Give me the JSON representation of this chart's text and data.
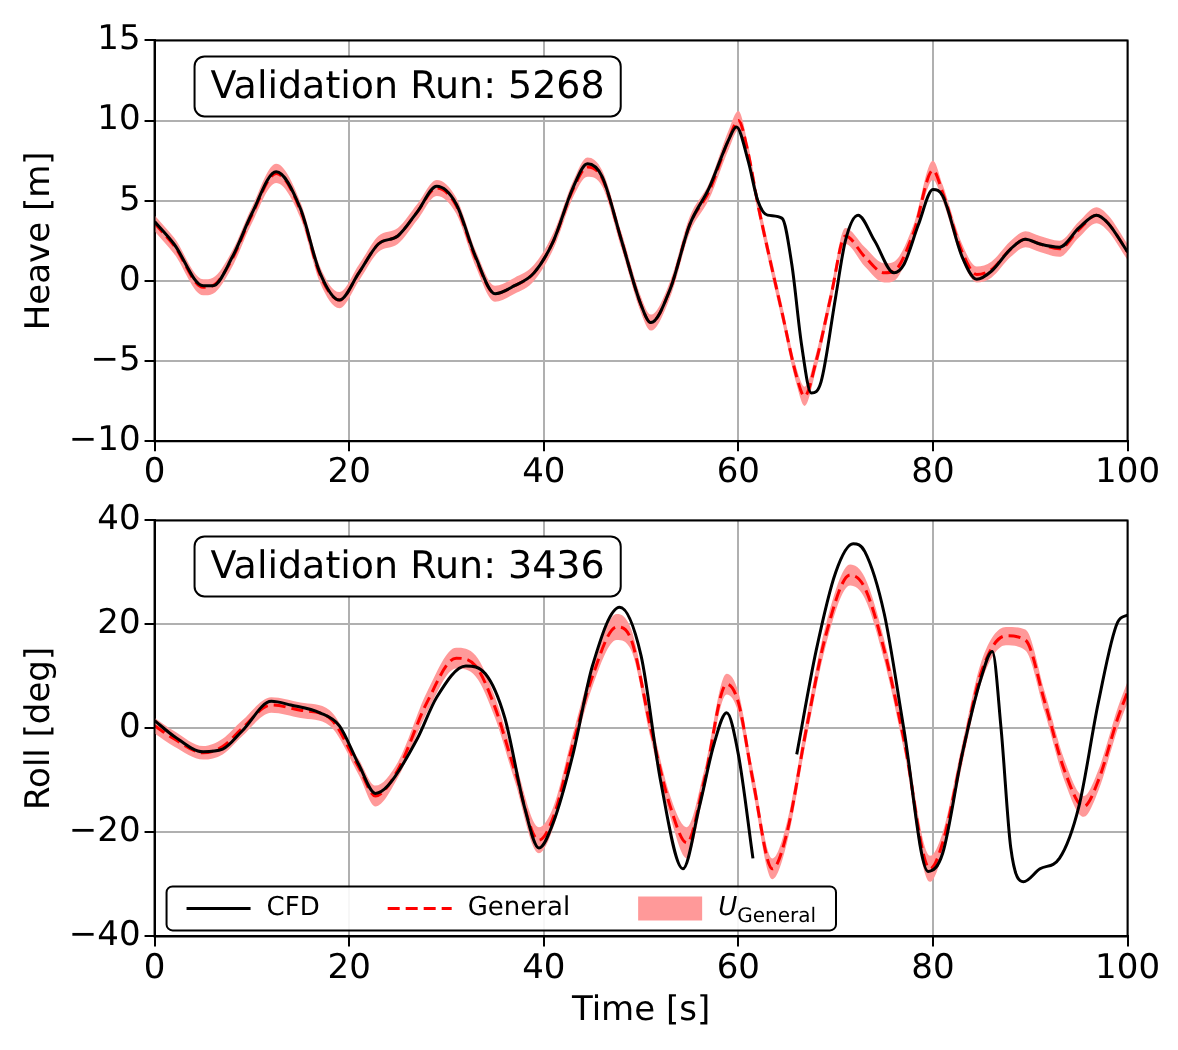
{
  "chart_data": [
    {
      "type": "line",
      "ylabel": "Heave [m]",
      "annotations": [
        "Validation Run: 5268"
      ],
      "xlim": [
        0,
        100
      ],
      "xticks": [
        0,
        20,
        40,
        60,
        80,
        100
      ],
      "ylim": [
        -10,
        15
      ],
      "yticks": [
        {
          "value": -10,
          "label": "−10"
        },
        {
          "value": -5,
          "label": "−5"
        },
        0,
        5,
        10,
        15
      ],
      "grid": true,
      "legend": false,
      "series": [
        {
          "color": "#000000",
          "line_style": "solid",
          "x": [
            0,
            2,
            5,
            6,
            8,
            10,
            12.5,
            15,
            17,
            19,
            21,
            23,
            25,
            27,
            29,
            31,
            33,
            35,
            37,
            39,
            41,
            43,
            44.5,
            46,
            48,
            50,
            51,
            53,
            55,
            57,
            59,
            59.8,
            61,
            62,
            63,
            64.5,
            65.5,
            66.5,
            67.5,
            68.5,
            70,
            71,
            72.3,
            74,
            76,
            77,
            78.5,
            80,
            81,
            83,
            84.5,
            86,
            88,
            89.5,
            91,
            93,
            95,
            96.8,
            98,
            100
          ],
          "values": [
            3.7,
            2.3,
            -0.3,
            -0.3,
            1.5,
            4.2,
            6.8,
            4.5,
            0.5,
            -1.2,
            0.5,
            2.3,
            2.8,
            4.3,
            5.9,
            4.8,
            1.5,
            -0.8,
            -0.3,
            0.5,
            2.5,
            5.8,
            7.3,
            6.5,
            2.5,
            -1.5,
            -2.6,
            -0.5,
            3.5,
            5.8,
            8.8,
            9.6,
            7.5,
            5,
            4.1,
            3.9,
            1,
            -4,
            -7,
            -6.3,
            -1,
            2.5,
            4.1,
            2.5,
            0.5,
            1,
            3.5,
            5.7,
            5.3,
            1.5,
            0.1,
            0.6,
            2,
            2.6,
            2.3,
            2.1,
            3.3,
            4.1,
            3.6,
            1.8
          ]
        },
        {
          "color": "#ff0000",
          "line_style": "dashed",
          "x": [
            0,
            2,
            5,
            6,
            8,
            10,
            12.5,
            15,
            17,
            19,
            21,
            23,
            25,
            27,
            29,
            31,
            33,
            35,
            37,
            39,
            41,
            43,
            44.5,
            46,
            48,
            50,
            51,
            53,
            55,
            57,
            59,
            60,
            61,
            62,
            63,
            64.5,
            66,
            66.8,
            68,
            69.5,
            71,
            73,
            75,
            76,
            78,
            80,
            81,
            83,
            84.5,
            86,
            88,
            89.5,
            91,
            93,
            95,
            96.8,
            98,
            100
          ],
          "values": [
            3.6,
            2.2,
            -0.4,
            -0.3,
            1.4,
            4.1,
            6.7,
            4.4,
            0.4,
            -1.2,
            0.5,
            2.3,
            2.8,
            4.3,
            5.8,
            4.7,
            1.4,
            -0.8,
            -0.3,
            0.5,
            2.5,
            5.7,
            7.1,
            6.4,
            2.5,
            -1.5,
            -2.6,
            -0.5,
            3.5,
            5.6,
            8.8,
            10,
            8,
            4.8,
            2,
            -2,
            -6,
            -7.2,
            -5,
            -1,
            2.8,
            1.5,
            0.5,
            0.6,
            3,
            6.9,
            5.5,
            1.8,
            0.4,
            0.7,
            2,
            2.6,
            2.3,
            2,
            3.2,
            4.1,
            3.6,
            1.8
          ]
        },
        {
          "color": "#ff9999",
          "x": [
            0,
            2,
            5,
            6,
            8,
            10,
            12.5,
            15,
            17,
            19,
            21,
            23,
            25,
            27,
            29,
            31,
            33,
            35,
            37,
            39,
            41,
            43,
            44.5,
            46,
            48,
            50,
            51,
            53,
            55,
            57,
            59,
            60,
            61,
            62,
            63,
            64.5,
            66,
            66.8,
            68,
            69.5,
            71,
            73,
            75,
            76,
            78,
            80,
            81,
            83,
            84.5,
            86,
            88,
            89.5,
            91,
            93,
            95,
            96.8,
            98,
            100
          ],
          "values": [
            null,
            null,
            null,
            null,
            null,
            null,
            null,
            null,
            null,
            null,
            null,
            null,
            null,
            null,
            null,
            null,
            null,
            null,
            null,
            null,
            null,
            null,
            null,
            null,
            null,
            null,
            null,
            null,
            null,
            null,
            null,
            null,
            null,
            null,
            null,
            null,
            null,
            null,
            null,
            null,
            null,
            null,
            null,
            null,
            null,
            null,
            null,
            null,
            null,
            null,
            null,
            null,
            null,
            null,
            null,
            null,
            null,
            null
          ],
          "lower": [
            3.1,
            1.7,
            -0.9,
            -0.8,
            0.9,
            3.6,
            6.1,
            3.9,
            -0.1,
            -1.7,
            0,
            1.8,
            2.3,
            3.8,
            5.3,
            4.2,
            0.9,
            -1.3,
            -0.8,
            0,
            2,
            5.2,
            6.5,
            5.9,
            2,
            -2,
            -3.1,
            -1,
            3,
            5.1,
            8.2,
            9.4,
            7.5,
            4.3,
            1.5,
            -2.5,
            -6.5,
            -7.8,
            -5.5,
            -1.5,
            2.3,
            0.9,
            -0.1,
            0,
            2.5,
            6.3,
            5,
            1.3,
            -0.1,
            0.2,
            1.5,
            2.1,
            1.8,
            1.5,
            2.7,
            3.6,
            3.1,
            1.3
          ],
          "upper": [
            4.1,
            2.7,
            0.1,
            0.2,
            1.9,
            4.6,
            7.3,
            4.9,
            0.9,
            -0.7,
            1,
            2.8,
            3.3,
            4.8,
            6.3,
            5.2,
            1.9,
            -0.3,
            0.2,
            1,
            3,
            6.2,
            7.7,
            6.9,
            3,
            -1,
            -2.1,
            0,
            4,
            6.1,
            9.4,
            10.6,
            8.5,
            5.3,
            2.5,
            -1.5,
            -5.5,
            -6.6,
            -4.5,
            -0.5,
            3.3,
            2.1,
            1.1,
            1.2,
            3.5,
            7.5,
            6,
            2.3,
            0.9,
            1.2,
            2.5,
            3.1,
            2.8,
            2.5,
            3.7,
            4.6,
            4.1,
            2.3
          ]
        }
      ]
    },
    {
      "type": "line",
      "xlabel": "Time [s]",
      "ylabel": "Roll [deg]",
      "annotations": [
        "Validation Run: 3436"
      ],
      "xlim": [
        0,
        100
      ],
      "xticks": [
        0,
        20,
        40,
        60,
        80,
        100
      ],
      "ylim": [
        -40,
        40
      ],
      "yticks": [
        {
          "value": -40,
          "label": "−40"
        },
        {
          "value": -20,
          "label": "−20"
        },
        0,
        20,
        40
      ],
      "grid": true,
      "legend": "bottom left",
      "series": [
        {
          "name": "CFD",
          "color": "#000000",
          "line_style": "solid",
          "x": [
            0,
            2,
            5,
            7,
            9,
            12,
            14,
            17,
            19,
            21,
            22.7,
            24,
            27,
            29,
            32,
            34,
            36,
            38,
            39.5,
            41,
            43,
            45,
            47.8,
            50,
            52,
            54.3,
            56,
            57.5,
            58.8,
            60,
            61.5,
            63,
            64.5,
            66,
            68,
            70,
            71.8,
            73,
            75,
            77,
            79.5,
            81,
            83,
            85,
            86.1,
            87,
            88,
            89.3,
            91,
            93,
            95,
            97,
            99,
            100
          ],
          "values": [
            1.5,
            -1.5,
            -4.5,
            -4,
            -0.5,
            5.2,
            4.5,
            3,
            0.5,
            -7,
            -12.5,
            -11,
            -2,
            6,
            12,
            10.5,
            2,
            -15,
            -23,
            -18,
            -5,
            12,
            23.3,
            14,
            -10,
            -27,
            -15,
            -3,
            3,
            -5,
            -25,
            null,
            null,
            -5,
            15,
            30,
            35.5,
            34,
            22,
            0,
            -27.5,
            -24,
            -5,
            10,
            14.8,
            0,
            -23,
            -29.5,
            -27,
            -25,
            -15,
            5,
            20.5,
            21.8
          ]
        },
        {
          "name": "General",
          "color": "#ff0000",
          "line_style": "dashed",
          "x": [
            0,
            2,
            5,
            7,
            9,
            12,
            15,
            18,
            21,
            22.7,
            25,
            28,
            31,
            33,
            35,
            37,
            39.5,
            41,
            43,
            45,
            47.5,
            49,
            51,
            53,
            54.7,
            56.5,
            58.8,
            60,
            61.5,
            63.5,
            65,
            67,
            69,
            71.5,
            73,
            75,
            77,
            79.7,
            81,
            83,
            85,
            87.5,
            89.5,
            91.5,
            93.5,
            95.5,
            97,
            99,
            100
          ],
          "values": [
            0.5,
            -2,
            -4.7,
            -3.5,
            0,
            4.5,
            3.5,
            2,
            -7.5,
            -13,
            -8,
            5,
            13.5,
            12,
            4,
            -8,
            -21.5,
            -17,
            -3,
            10,
            19.5,
            17,
            0,
            -15,
            -22,
            -10,
            8.5,
            5,
            -10,
            -27,
            -20,
            0,
            18,
            29.5,
            27,
            15,
            -2,
            -27,
            -22,
            -5,
            11,
            17.8,
            17,
            5,
            -8,
            -15,
            -10,
            2,
            7
          ]
        },
        {
          "name": "U$_{General}$",
          "color": "#ff9999",
          "x": [
            0,
            2,
            5,
            7,
            9,
            12,
            15,
            18,
            21,
            22.7,
            25,
            28,
            31,
            33,
            35,
            37,
            39.5,
            41,
            43,
            45,
            47.5,
            49,
            51,
            53,
            54.7,
            56.5,
            58.8,
            60,
            61.5,
            63.5,
            65,
            67,
            69,
            71.5,
            73,
            75,
            77,
            79.7,
            81,
            83,
            85,
            87.5,
            89.5,
            91.5,
            93.5,
            95.5,
            97,
            99,
            100
          ],
          "values": [
            null,
            null,
            null,
            null,
            null,
            null,
            null,
            null,
            null,
            null,
            null,
            null,
            null,
            null,
            null,
            null,
            null,
            null,
            null,
            null,
            null,
            null,
            null,
            null,
            null,
            null,
            null,
            null,
            null,
            null,
            null,
            null,
            null,
            null,
            null,
            null,
            null,
            null,
            null,
            null,
            null,
            null,
            null,
            null,
            null,
            null,
            null,
            null,
            null
          ],
          "lower": [
            -1,
            -3.5,
            -6,
            -5,
            -1.5,
            3,
            2,
            0.5,
            -9,
            -15,
            -9.5,
            3,
            11.5,
            10,
            2,
            -10,
            -24,
            -19,
            -5,
            8,
            17,
            15,
            -2,
            -17,
            -25,
            -12,
            6.5,
            3,
            -12,
            -29,
            -22,
            -2,
            16,
            27.5,
            25,
            13,
            -4,
            -29.5,
            -24,
            -7,
            9,
            16,
            15,
            3,
            -10,
            -17,
            -12,
            0,
            5
          ],
          "upper": [
            2,
            -0.5,
            -3.4,
            -2,
            1.5,
            6,
            5,
            3.5,
            -6,
            -11,
            -6.5,
            7,
            15.5,
            14,
            6,
            -6,
            -19,
            -15,
            -1,
            12,
            22,
            19,
            2,
            -13,
            -19,
            -8,
            10.5,
            7,
            -8,
            -25,
            -18,
            2,
            20,
            31.5,
            29,
            17,
            0,
            -24.5,
            -20,
            -3,
            13,
            19.5,
            19,
            7,
            -6,
            -13,
            -8,
            4,
            9
          ]
        }
      ]
    }
  ]
}
